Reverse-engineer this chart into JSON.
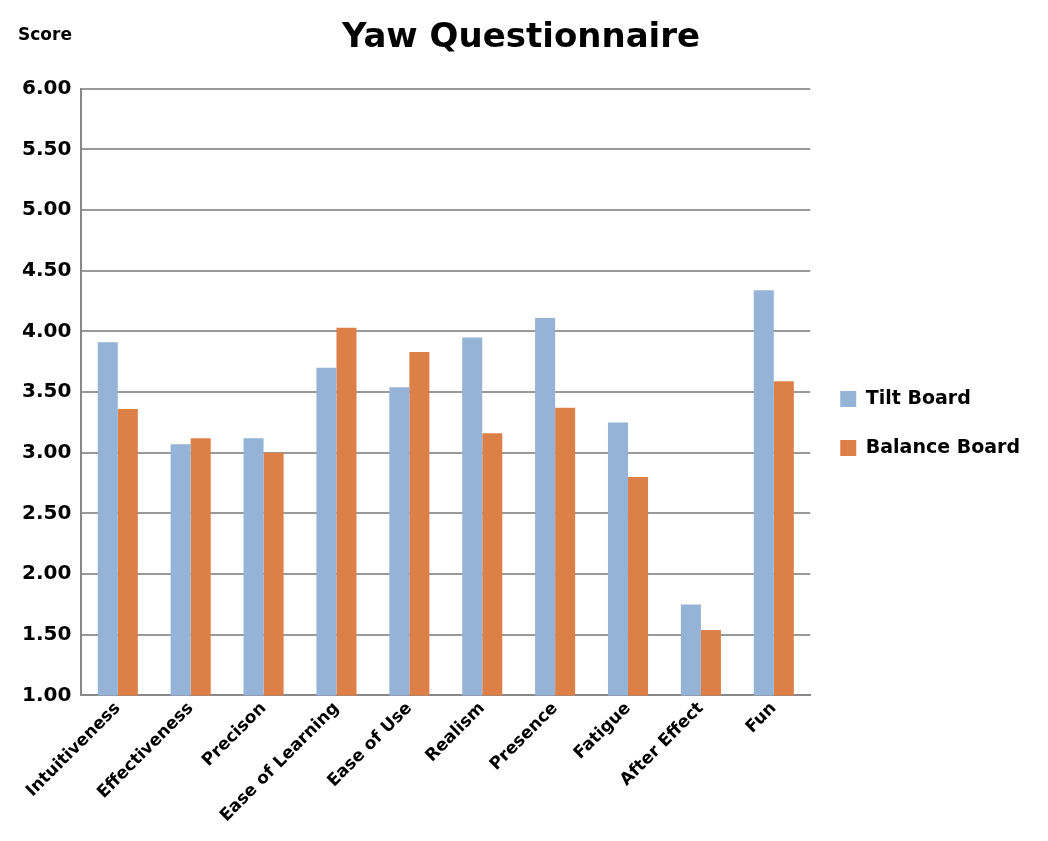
{
  "chart_data": {
    "type": "bar",
    "title": "Yaw Questionnaire",
    "ylabel": "Score",
    "categories": [
      "Intuitiveness",
      "Effectiveness",
      "Precison",
      "Ease of Learning",
      "Ease of Use",
      "Realism",
      "Presence",
      "Fatigue",
      "After Effect",
      "Fun"
    ],
    "series": [
      {
        "name": "Tilt Board",
        "color": "#95b3d7",
        "values": [
          3.91,
          3.07,
          3.12,
          3.7,
          3.54,
          3.95,
          4.11,
          3.25,
          1.75,
          4.34
        ]
      },
      {
        "name": "Balance Board",
        "color": "#dd8047",
        "values": [
          3.36,
          3.12,
          3.0,
          4.03,
          3.83,
          3.16,
          3.37,
          2.8,
          1.54,
          3.59
        ]
      }
    ],
    "ylim": [
      1,
      6
    ],
    "yticks": [
      {
        "value": 1,
        "label": "1.00"
      },
      {
        "value": 1.5,
        "label": "1.50"
      },
      {
        "value": 2,
        "label": "2.00"
      },
      {
        "value": 2.5,
        "label": "2.50"
      },
      {
        "value": 3,
        "label": "3.00"
      },
      {
        "value": 3.5,
        "label": "3.50"
      },
      {
        "value": 4,
        "label": "4.00"
      },
      {
        "value": 4.5,
        "label": "4.50"
      },
      {
        "value": 5,
        "label": "5.00"
      },
      {
        "value": 5.5,
        "label": "5.50"
      },
      {
        "value": 6,
        "label": "6.00"
      }
    ],
    "grid": "y",
    "legend": "right"
  }
}
